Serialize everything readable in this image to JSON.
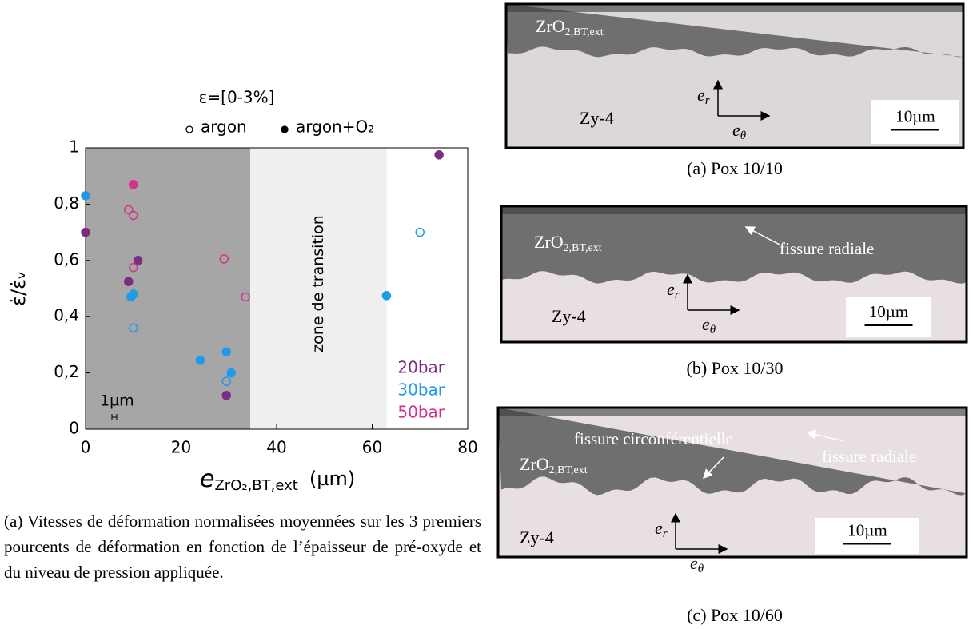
{
  "chart_data": {
    "type": "scatter",
    "title": "ε=[0-3%]",
    "marker_legend": [
      {
        "label": "argon",
        "filled": false
      },
      {
        "label": "argon+O₂",
        "filled": true
      }
    ],
    "ylabel": "ε̇/ε̇ᵥ",
    "xlabel": {
      "symbol": "e",
      "sub": "ZrO₂,BT,ext",
      "unit": "(µm)"
    },
    "xlim": [
      0,
      80
    ],
    "ylim": [
      0,
      1
    ],
    "xticks": [
      0,
      20,
      40,
      60,
      80
    ],
    "yticks": [
      0,
      {
        "value": 0.2,
        "label": "0,2"
      },
      {
        "value": 0.4,
        "label": "0,4"
      },
      {
        "value": 0.6,
        "label": "0,6"
      },
      {
        "value": 0.8,
        "label": "0,8"
      },
      1
    ],
    "regions": [
      {
        "from": 0,
        "to": 34.5,
        "color": "#a6a6a6"
      },
      {
        "from": 34.5,
        "to": 63,
        "color": "#efefef"
      }
    ],
    "annotation": "zone de transition",
    "scalebar": {
      "label": "1µm",
      "length": 1
    },
    "series": [
      {
        "name": "20bar",
        "color": "#7b2d83",
        "x": [
          0,
          9,
          11,
          29.5,
          74
        ],
        "values": [
          0.7,
          0.525,
          0.6,
          0.12,
          0.975
        ],
        "filled": [
          true,
          true,
          true,
          true,
          true
        ]
      },
      {
        "name": "30bar",
        "color": "#1f9be8",
        "x": [
          0,
          9.5,
          10,
          24,
          29.5,
          30.5,
          63,
          10,
          29.5,
          70
        ],
        "values": [
          0.83,
          0.47,
          0.48,
          0.245,
          0.275,
          0.2,
          0.475,
          0.36,
          0.17,
          0.7
        ],
        "filled": [
          true,
          true,
          true,
          true,
          true,
          true,
          true,
          false,
          false,
          false
        ]
      },
      {
        "name": "50bar",
        "color": "#d4318e",
        "x": [
          10,
          9,
          10,
          10,
          29,
          33.5
        ],
        "values": [
          0.87,
          0.78,
          0.76,
          0.575,
          0.605,
          0.47
        ],
        "filled": [
          true,
          false,
          false,
          false,
          false,
          false
        ]
      }
    ]
  },
  "caption": "(a) Vitesses de déformation normalisées moyennées sur les 3 premiers pourcents de déformation en fonction de l’épaisseur de pré-oxyde et du niveau de pression appliquée.",
  "panels": [
    {
      "caption": "(a) Pox 10/10",
      "oxide": [
        "ZrO",
        "2,BT,ext"
      ],
      "metal": "Zy-4",
      "e_r": [
        "e",
        "r"
      ],
      "e_theta": [
        "e",
        "θ"
      ],
      "scale": "10µm",
      "notes": []
    },
    {
      "caption": "(b) Pox 10/30",
      "oxide": [
        "ZrO",
        "2,BT,ext"
      ],
      "metal": "Zy-4",
      "e_r": [
        "e",
        "r"
      ],
      "e_theta": [
        "e",
        "θ"
      ],
      "scale": "10µm",
      "notes": [
        "fissure radiale"
      ]
    },
    {
      "caption": "(c) Pox 10/60",
      "oxide": [
        "ZrO",
        "2,BT,ext"
      ],
      "metal": "Zy-4",
      "e_r": [
        "e",
        "r"
      ],
      "e_theta": [
        "e",
        "θ"
      ],
      "scale": "10µm",
      "notes": [
        "fissure circonférentielle",
        "fissure radiale"
      ]
    }
  ]
}
